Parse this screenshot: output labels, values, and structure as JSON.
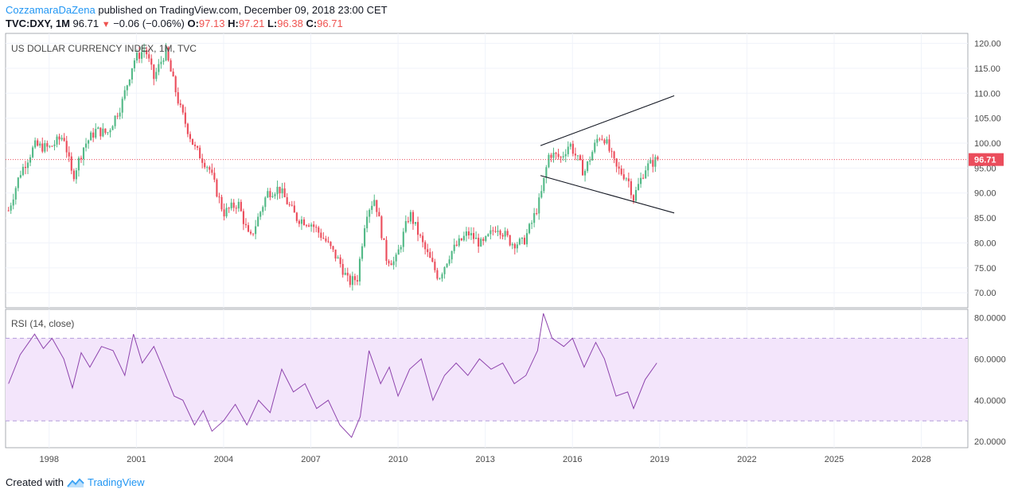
{
  "header": {
    "author": "CozzamaraDaZena",
    "published": "published on TradingView.com, December 09, 2018 23:00 CET",
    "symbol": "TVC:DXY, 1M",
    "last": "96.71",
    "change": "−0.06 (−0.06%)",
    "o_label": "O:",
    "o": "97.13",
    "h_label": "H:",
    "h": "97.21",
    "l_label": "L:",
    "l": "96.38",
    "c_label": "C:",
    "c": "96.71"
  },
  "footer": {
    "created_with": "Created with",
    "brand": "TradingView"
  },
  "colors": {
    "up": "#53b987",
    "down": "#eb4d5c",
    "rsi_line": "#8e44ad",
    "rsi_band": "#f3e5fb",
    "price_tag": "#eb4d5c",
    "trendline": "#131722"
  },
  "chart_data": [
    {
      "type": "candlestick",
      "title": "US DOLLAR CURRENCY INDEX, 1M, TVC",
      "ylim": [
        67,
        122
      ],
      "y_ticks": [
        "120.00",
        "115.00",
        "110.00",
        "105.00",
        "100.00",
        "95.00",
        "90.00",
        "85.00",
        "80.00",
        "75.00",
        "70.00"
      ],
      "x_ticks": [
        "1998",
        "2001",
        "2004",
        "2007",
        "2010",
        "2013",
        "2016",
        "2019",
        "2022",
        "2025",
        "2028"
      ],
      "xlim": [
        1996.5,
        2029.6
      ],
      "last_price": 96.71,
      "last_price_label": "96.71",
      "series": [
        {
          "name": "DXY",
          "t": [
            1996.6,
            1997.0,
            1997.5,
            1998.0,
            1998.5,
            1998.8,
            1999.2,
            1999.6,
            2000.0,
            2000.5,
            2000.9,
            2001.3,
            2001.6,
            2002.0,
            2002.5,
            2003.0,
            2003.5,
            2004.0,
            2004.5,
            2004.9,
            2005.5,
            2005.9,
            2006.5,
            2007.0,
            2007.5,
            2008.0,
            2008.3,
            2008.6,
            2008.9,
            2009.2,
            2009.6,
            2009.9,
            2010.4,
            2010.9,
            2011.4,
            2011.8,
            2012.4,
            2012.9,
            2013.4,
            2013.9,
            2014.3,
            2014.6,
            2014.9,
            2015.2,
            2015.6,
            2015.9,
            2016.4,
            2016.9,
            2017.1,
            2017.5,
            2017.9,
            2018.1,
            2018.5,
            2018.9
          ],
          "close": [
            86.5,
            94.0,
            99.5,
            99.0,
            101.5,
            93.0,
            99.5,
            102.5,
            102.0,
            108.0,
            116.5,
            119.0,
            113.0,
            118.5,
            107.0,
            99.0,
            95.0,
            86.0,
            88.0,
            80.5,
            90.0,
            91.0,
            85.0,
            84.0,
            80.5,
            76.0,
            72.0,
            73.0,
            86.0,
            89.0,
            77.0,
            76.0,
            86.0,
            79.0,
            73.0,
            78.0,
            82.0,
            79.5,
            83.5,
            80.0,
            80.0,
            84.0,
            89.0,
            98.0,
            97.0,
            100.0,
            94.0,
            101.5,
            101.0,
            95.0,
            93.0,
            89.0,
            95.0,
            96.71
          ]
        },
        {
          "name": "Upper trendline",
          "t": [
            2014.9,
            2019.5
          ],
          "values": [
            99.5,
            109.5
          ]
        },
        {
          "name": "Lower trendline",
          "t": [
            2014.9,
            2019.5
          ],
          "values": [
            93.5,
            86.0
          ]
        }
      ]
    },
    {
      "type": "line",
      "title": "RSI (14, close)",
      "ylim": [
        17,
        84
      ],
      "y_ticks": [
        "80.0000",
        "60.0000",
        "40.0000",
        "20.0000"
      ],
      "bands": [
        70,
        30
      ],
      "series": [
        {
          "name": "RSI",
          "t": [
            1996.6,
            1997.0,
            1997.5,
            1997.8,
            1998.1,
            1998.5,
            1998.8,
            1999.1,
            1999.4,
            1999.8,
            2000.2,
            2000.6,
            2000.9,
            2001.2,
            2001.6,
            2001.9,
            2002.3,
            2002.6,
            2003.0,
            2003.3,
            2003.6,
            2004.0,
            2004.4,
            2004.8,
            2005.2,
            2005.6,
            2006.0,
            2006.4,
            2006.8,
            2007.2,
            2007.6,
            2008.0,
            2008.4,
            2008.7,
            2009.0,
            2009.4,
            2009.7,
            2010.0,
            2010.4,
            2010.8,
            2011.2,
            2011.6,
            2012.0,
            2012.4,
            2012.8,
            2013.2,
            2013.6,
            2014.0,
            2014.4,
            2014.8,
            2015.0,
            2015.3,
            2015.7,
            2016.0,
            2016.4,
            2016.8,
            2017.1,
            2017.5,
            2017.9,
            2018.1,
            2018.5,
            2018.9
          ],
          "values": [
            48,
            62,
            72,
            65,
            70,
            60,
            46,
            63,
            56,
            66,
            64,
            52,
            72,
            58,
            66,
            56,
            42,
            40,
            28,
            35,
            25,
            30,
            38,
            28,
            40,
            34,
            55,
            44,
            48,
            36,
            40,
            28,
            22,
            32,
            64,
            48,
            56,
            42,
            55,
            60,
            40,
            52,
            58,
            52,
            60,
            55,
            58,
            48,
            52,
            64,
            82,
            70,
            66,
            70,
            56,
            68,
            60,
            42,
            44,
            36,
            50,
            58
          ]
        }
      ]
    }
  ]
}
